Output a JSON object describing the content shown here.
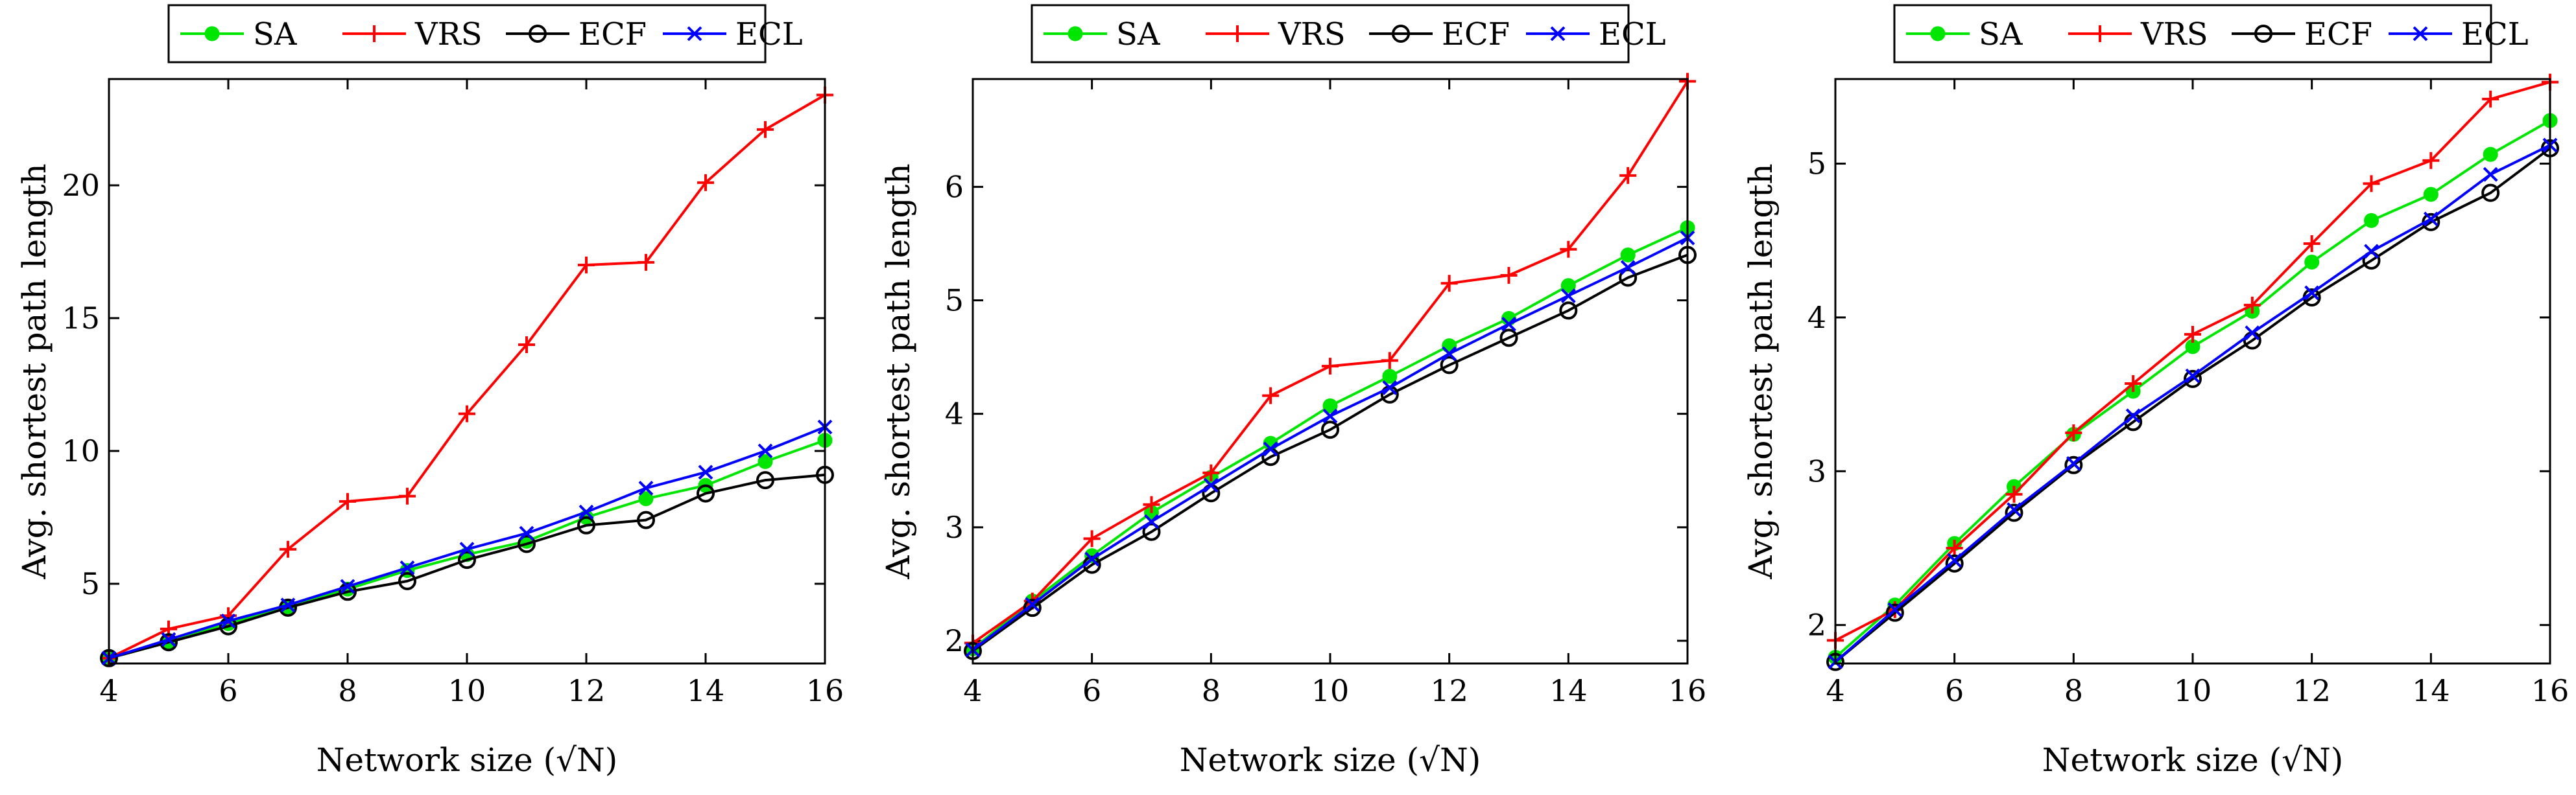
{
  "chart_data": [
    {
      "type": "line",
      "xlabel": "Network size (√N)",
      "ylabel": "Avg. shortest path length",
      "xlim": [
        4,
        16
      ],
      "ylim": [
        2.0,
        24.0
      ],
      "xticks": [
        4,
        6,
        8,
        10,
        12,
        14,
        16
      ],
      "yticks": [
        5,
        10,
        15,
        20
      ],
      "legend_position": "top-center",
      "x": [
        4,
        5,
        6,
        7,
        8,
        9,
        10,
        11,
        12,
        13,
        14,
        15,
        16
      ],
      "series": [
        {
          "name": "SA",
          "color": "#00e600",
          "marker": "dot",
          "values": [
            2.2,
            2.8,
            3.5,
            4.1,
            4.8,
            5.5,
            6.1,
            6.6,
            7.5,
            8.2,
            8.7,
            9.6,
            10.4
          ]
        },
        {
          "name": "VRS",
          "color": "#ff0000",
          "marker": "plus",
          "values": [
            2.2,
            3.3,
            3.8,
            6.3,
            8.1,
            8.3,
            11.4,
            14.0,
            17.0,
            17.1,
            20.1,
            22.1,
            23.4
          ]
        },
        {
          "name": "ECF",
          "color": "#000000",
          "marker": "circle",
          "values": [
            2.2,
            2.8,
            3.4,
            4.1,
            4.7,
            5.1,
            5.9,
            6.5,
            7.2,
            7.4,
            8.4,
            8.9,
            9.1
          ]
        },
        {
          "name": "ECL",
          "color": "#0000ff",
          "marker": "cross",
          "values": [
            2.2,
            2.9,
            3.6,
            4.2,
            4.9,
            5.6,
            6.3,
            6.9,
            7.7,
            8.6,
            9.2,
            10.0,
            10.9
          ]
        }
      ]
    },
    {
      "type": "line",
      "xlabel": "Network size (√N)",
      "ylabel": "Avg. shortest path length",
      "xlim": [
        4,
        16
      ],
      "ylim": [
        1.8,
        6.95
      ],
      "xticks": [
        4,
        6,
        8,
        10,
        12,
        14,
        16
      ],
      "yticks": [
        2,
        3,
        4,
        5,
        6
      ],
      "legend_position": "top-center",
      "x": [
        4,
        5,
        6,
        7,
        8,
        9,
        10,
        11,
        12,
        13,
        14,
        15,
        16
      ],
      "series": [
        {
          "name": "SA",
          "color": "#00e600",
          "marker": "dot",
          "values": [
            1.93,
            2.35,
            2.75,
            3.13,
            3.44,
            3.74,
            4.07,
            4.33,
            4.6,
            4.84,
            5.13,
            5.4,
            5.64
          ]
        },
        {
          "name": "VRS",
          "color": "#ff0000",
          "marker": "plus",
          "values": [
            1.98,
            2.35,
            2.9,
            3.2,
            3.48,
            4.16,
            4.42,
            4.47,
            5.15,
            5.22,
            5.45,
            6.1,
            6.93
          ]
        },
        {
          "name": "ECF",
          "color": "#000000",
          "marker": "circle",
          "values": [
            1.91,
            2.29,
            2.67,
            2.96,
            3.3,
            3.62,
            3.86,
            4.17,
            4.43,
            4.67,
            4.91,
            5.2,
            5.4
          ]
        },
        {
          "name": "ECL",
          "color": "#0000ff",
          "marker": "cross",
          "values": [
            1.92,
            2.32,
            2.72,
            3.05,
            3.37,
            3.69,
            3.98,
            4.23,
            4.53,
            4.79,
            5.04,
            5.29,
            5.55
          ]
        }
      ]
    },
    {
      "type": "line",
      "xlabel": "Network size (√N)",
      "ylabel": "Avg. shortest path length",
      "xlim": [
        4,
        16
      ],
      "ylim": [
        1.75,
        5.55
      ],
      "xticks": [
        4,
        6,
        8,
        10,
        12,
        14,
        16
      ],
      "yticks": [
        2,
        3,
        4,
        5
      ],
      "legend_position": "top-center",
      "x": [
        4,
        5,
        6,
        7,
        8,
        9,
        10,
        11,
        12,
        13,
        14,
        15,
        16
      ],
      "series": [
        {
          "name": "SA",
          "color": "#00e600",
          "marker": "dot",
          "values": [
            1.79,
            2.13,
            2.53,
            2.9,
            3.24,
            3.52,
            3.81,
            4.04,
            4.36,
            4.63,
            4.8,
            5.06,
            5.28
          ]
        },
        {
          "name": "VRS",
          "color": "#ff0000",
          "marker": "plus",
          "values": [
            1.9,
            2.1,
            2.5,
            2.85,
            3.25,
            3.57,
            3.89,
            4.08,
            4.48,
            4.87,
            5.02,
            5.42,
            5.53
          ]
        },
        {
          "name": "ECF",
          "color": "#000000",
          "marker": "circle",
          "values": [
            1.76,
            2.08,
            2.4,
            2.73,
            3.04,
            3.32,
            3.6,
            3.85,
            4.13,
            4.37,
            4.62,
            4.81,
            5.1
          ]
        },
        {
          "name": "ECL",
          "color": "#0000ff",
          "marker": "cross",
          "values": [
            1.76,
            2.1,
            2.42,
            2.75,
            3.05,
            3.36,
            3.62,
            3.9,
            4.16,
            4.43,
            4.64,
            4.93,
            5.12
          ]
        }
      ]
    }
  ]
}
